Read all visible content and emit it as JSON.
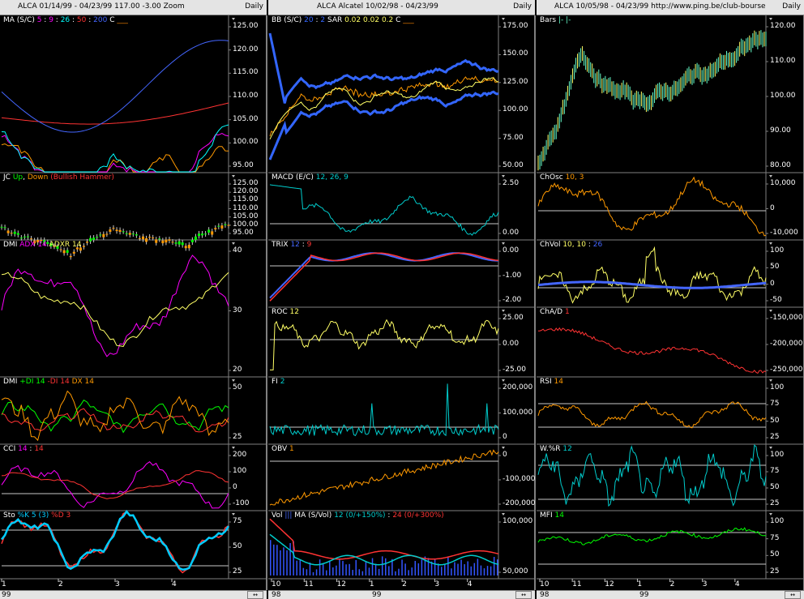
{
  "columns": [
    {
      "header_title": "ALCA   01/14/99 - 04/23/99   117.00   -3.00   Zoom",
      "period": "Daily",
      "x_ticks": [
        "1",
        "2",
        "3",
        "4"
      ],
      "year_labels": [
        "99"
      ],
      "panels": [
        {
          "label": [
            {
              "t": "MA (S/C) ",
              "c": "#ffffff"
            },
            {
              "t": "5",
              "c": "#ff00ff"
            },
            {
              "t": " : ",
              "c": "#ffffff"
            },
            {
              "t": "9",
              "c": "#ff00ff"
            },
            {
              "t": " : ",
              "c": "#ffffff"
            },
            {
              "t": "26",
              "c": "#00ffff"
            },
            {
              "t": " : ",
              "c": "#ffffff"
            },
            {
              "t": "50",
              "c": "#ff3333"
            },
            {
              "t": " : ",
              "c": "#ffffff"
            },
            {
              "t": "200",
              "c": "#4466ff"
            },
            {
              "t": "   C  ",
              "c": "#ffffff"
            },
            {
              "t": "___",
              "c": "#ff8800"
            }
          ],
          "ticks": [
            "125.00",
            "120.00",
            "115.00",
            "110.00",
            "105.00",
            "100.00",
            "95.00"
          ]
        },
        {
          "label": [
            {
              "t": "JC ",
              "c": "#ffffff"
            },
            {
              "t": "Up",
              "c": "#00ff00"
            },
            {
              "t": ", ",
              "c": "#ffffff"
            },
            {
              "t": "Down",
              "c": "#ff9900"
            },
            {
              "t": " (Bullish Hammer)",
              "c": "#ff3333"
            }
          ],
          "ticks": [
            "125.00",
            "120.00",
            "115.00",
            "110.00",
            "105.00",
            "100.00",
            "95.00"
          ]
        },
        {
          "label": [
            {
              "t": "DMI ",
              "c": "#ffffff"
            },
            {
              "t": "ADX 14",
              "c": "#ff00ff"
            },
            {
              "t": "  ",
              "c": "#ffffff"
            },
            {
              "t": "ADXR 14",
              "c": "#ffff66"
            }
          ],
          "ticks": [
            "40",
            "30",
            "20"
          ]
        },
        {
          "label": [
            {
              "t": "DMI ",
              "c": "#ffffff"
            },
            {
              "t": "+DI 14",
              "c": "#00ff00"
            },
            {
              "t": " ",
              "c": "#ffffff"
            },
            {
              "t": "-DI 14",
              "c": "#ff3333"
            },
            {
              "t": " DX 14",
              "c": "#ff9900"
            }
          ],
          "ticks": [
            "50",
            "25"
          ]
        },
        {
          "label": [
            {
              "t": "CCI ",
              "c": "#ffffff"
            },
            {
              "t": "14",
              "c": "#ff00ff"
            },
            {
              "t": " : ",
              "c": "#ffffff"
            },
            {
              "t": "14",
              "c": "#ff3333"
            }
          ],
          "ticks": [
            "200",
            "100",
            "0",
            "-100"
          ]
        },
        {
          "label": [
            {
              "t": "Sto ",
              "c": "#ffffff"
            },
            {
              "t": "%K 5 (3)",
              "c": "#00ccff"
            },
            {
              "t": " ",
              "c": "#ffffff"
            },
            {
              "t": "%D 3",
              "c": "#ff3333"
            }
          ],
          "ticks": [
            "75",
            "50",
            "25"
          ]
        }
      ]
    },
    {
      "header_title": "ALCA   Alcatel   10/02/98 - 04/23/99",
      "period": "Daily",
      "x_ticks": [
        "10",
        "11",
        "12",
        "1",
        "2",
        "3",
        "4"
      ],
      "year_labels": [
        "98",
        "99"
      ],
      "panels": [
        {
          "label": [
            {
              "t": "BB (S/C) ",
              "c": "#ffffff"
            },
            {
              "t": "20",
              "c": "#3366ff"
            },
            {
              "t": " : ",
              "c": "#ffffff"
            },
            {
              "t": "2",
              "c": "#3366ff"
            },
            {
              "t": "   SAR  ",
              "c": "#ffffff"
            },
            {
              "t": "0.02",
              "c": "#ffff66"
            },
            {
              "t": "  ",
              "c": "#ffffff"
            },
            {
              "t": "0.02",
              "c": "#ffff66"
            },
            {
              "t": "  ",
              "c": "#ffffff"
            },
            {
              "t": "0.2",
              "c": "#ffff66"
            },
            {
              "t": "   C  ",
              "c": "#ffffff"
            },
            {
              "t": "___",
              "c": "#ff8800"
            }
          ],
          "ticks": [
            "175.00",
            "150.00",
            "125.00",
            "100.00",
            "75.00",
            "50.00"
          ]
        },
        {
          "label": [
            {
              "t": "MACD (E/C) ",
              "c": "#ffffff"
            },
            {
              "t": "12, 26, 9",
              "c": "#00cccc"
            }
          ],
          "ticks": [
            "2.50",
            "0.00"
          ]
        },
        {
          "label": [
            {
              "t": "TRIX  ",
              "c": "#ffffff"
            },
            {
              "t": "12",
              "c": "#4466ff"
            },
            {
              "t": " : ",
              "c": "#ffffff"
            },
            {
              "t": "9",
              "c": "#ff3333"
            }
          ],
          "ticks": [
            "0.00",
            "-1.00",
            "-2.00"
          ]
        },
        {
          "label": [
            {
              "t": "ROC  ",
              "c": "#ffffff"
            },
            {
              "t": "12",
              "c": "#ffff66"
            }
          ],
          "ticks": [
            "25.00",
            "0.00",
            "-25.00"
          ]
        },
        {
          "label": [
            {
              "t": "FI  ",
              "c": "#ffffff"
            },
            {
              "t": "2",
              "c": "#00cccc"
            }
          ],
          "ticks": [
            "200,000",
            "100,000",
            "0"
          ]
        },
        {
          "label": [
            {
              "t": "OBV  ",
              "c": "#ffffff"
            },
            {
              "t": "1",
              "c": "#ff9900"
            }
          ],
          "ticks": [
            "0",
            "-100,000",
            "-200,000"
          ]
        },
        {
          "label": [
            {
              "t": "Vol  ",
              "c": "#ffffff"
            },
            {
              "t": "|||",
              "c": "#4466ff"
            },
            {
              "t": "   MA  (S/Vol)  ",
              "c": "#ffffff"
            },
            {
              "t": "12 (0/+150%)",
              "c": "#00cccc"
            },
            {
              "t": " : ",
              "c": "#ffffff"
            },
            {
              "t": "24 (0/+300%)",
              "c": "#ff3333"
            }
          ],
          "ticks": [
            "100,000",
            "50,000"
          ]
        }
      ]
    },
    {
      "header_title": "ALCA   10/05/98 - 04/23/99   http://www.ping.be/club-bourse",
      "period": "Daily",
      "x_ticks": [
        "10",
        "11",
        "12",
        "1",
        "2",
        "3",
        "4"
      ],
      "year_labels": [
        "98",
        "99"
      ],
      "panels": [
        {
          "label": [
            {
              "t": "Bars  ",
              "c": "#ffffff"
            },
            {
              "t": "|-  |-",
              "c": "#66ffcc"
            }
          ],
          "ticks": [
            "120.00",
            "110.00",
            "100.00",
            "90.00",
            "80.00"
          ]
        },
        {
          "label": [
            {
              "t": "ChOsc  ",
              "c": "#ffffff"
            },
            {
              "t": "10, 3",
              "c": "#ff9900"
            }
          ],
          "ticks": [
            "10,000",
            "0",
            "-10,000"
          ]
        },
        {
          "label": [
            {
              "t": "ChVol  ",
              "c": "#ffffff"
            },
            {
              "t": "10, 10",
              "c": "#ffff66"
            },
            {
              "t": " : ",
              "c": "#ffffff"
            },
            {
              "t": "26",
              "c": "#4466ff"
            }
          ],
          "ticks": [
            "100",
            "50",
            "0",
            "-50"
          ]
        },
        {
          "label": [
            {
              "t": "ChA/D  ",
              "c": "#ffffff"
            },
            {
              "t": "1",
              "c": "#ff3333"
            }
          ],
          "ticks": [
            "-150,000",
            "-200,000",
            "-250,000"
          ]
        },
        {
          "label": [
            {
              "t": "RSI  ",
              "c": "#ffffff"
            },
            {
              "t": "14",
              "c": "#ff9900"
            }
          ],
          "ticks": [
            "100",
            "75",
            "50",
            "25"
          ]
        },
        {
          "label": [
            {
              "t": "W.%R  ",
              "c": "#ffffff"
            },
            {
              "t": "12",
              "c": "#00cccc"
            }
          ],
          "ticks": [
            "100",
            "75",
            "50",
            "25"
          ]
        },
        {
          "label": [
            {
              "t": "MFI  ",
              "c": "#ffffff"
            },
            {
              "t": "14",
              "c": "#00ff00"
            }
          ],
          "ticks": [
            "100",
            "75",
            "50",
            "25"
          ]
        }
      ]
    }
  ]
}
